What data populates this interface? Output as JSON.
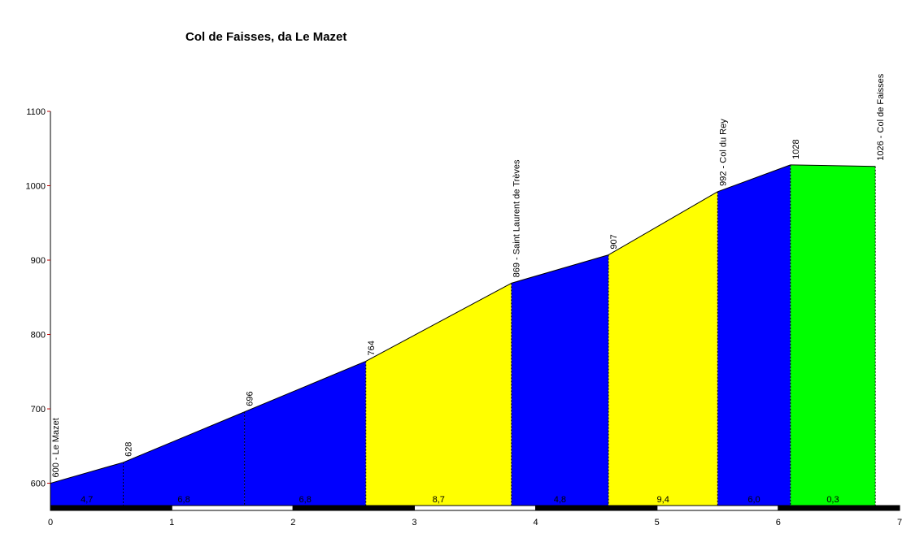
{
  "chart_data": {
    "type": "elevation-profile",
    "title": "Col de Faisses, da Le Mazet",
    "x": [
      0,
      0.6,
      1.6,
      2.6,
      3.8,
      4.6,
      5.5,
      6.1,
      6.8
    ],
    "values": [
      600,
      628,
      696,
      764,
      869,
      907,
      992,
      1028,
      1026
    ],
    "point_labels": [
      "600 - Le Mazet",
      "628",
      "696",
      "764",
      "869 - Saint Laurent de Trèves",
      "907",
      "992 - Col du Rey",
      "1028",
      "1026 - Col de Faisses"
    ],
    "gradients": [
      4.7,
      6.8,
      6.8,
      8.7,
      4.8,
      9.4,
      6.0,
      0.3
    ],
    "gradient_labels": [
      "4,7",
      "6,8",
      "6,8",
      "8,7",
      "4,8",
      "9,4",
      "6,0",
      "0,3"
    ],
    "colors": [
      "#0000ff",
      "#0000ff",
      "#0000ff",
      "#ffff00",
      "#0000ff",
      "#ffff00",
      "#0000ff",
      "#00ff00"
    ],
    "xlim": [
      0,
      7
    ],
    "ylim": [
      570,
      1100
    ],
    "xticks": [
      0,
      1,
      2,
      3,
      4,
      5,
      6,
      7
    ],
    "yticks": [
      600,
      700,
      800,
      900,
      1000,
      1100
    ]
  }
}
